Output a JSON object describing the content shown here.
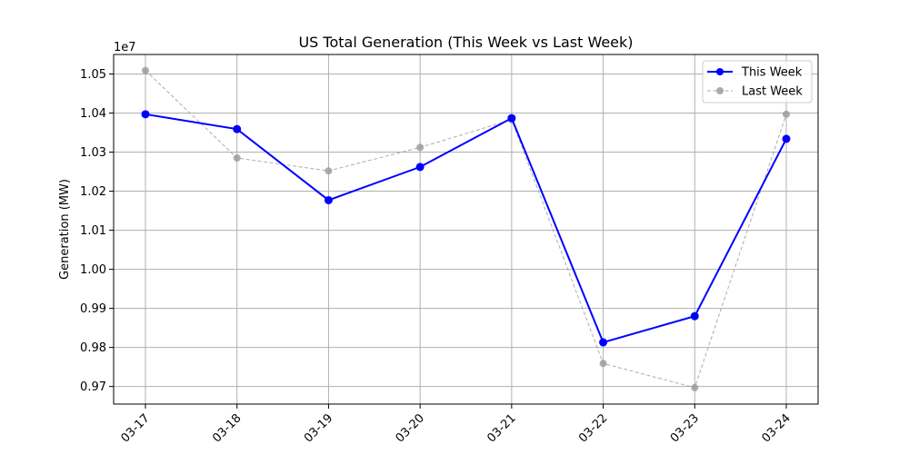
{
  "chart_data": {
    "type": "line",
    "title": "US Total Generation (This Week vs Last Week)",
    "xlabel": "",
    "ylabel": "Generation (MW)",
    "y_offset_label": "1e7",
    "categories": [
      "03-17",
      "03-18",
      "03-19",
      "03-20",
      "03-21",
      "03-22",
      "03-23",
      "03-24"
    ],
    "yticks": [
      "0.97",
      "0.98",
      "0.99",
      "1.00",
      "1.01",
      "1.02",
      "1.03",
      "1.04",
      "1.05"
    ],
    "ylim": [
      9655000,
      10550000
    ],
    "grid": true,
    "legend_position": "top-right",
    "series": [
      {
        "name": "This Week",
        "color": "#0000ff",
        "style": "solid",
        "values": [
          10397000,
          10359000,
          10177000,
          10262000,
          10387000,
          9813000,
          9880000,
          10334000
        ]
      },
      {
        "name": "Last Week",
        "color": "#999999",
        "style": "dashed",
        "values": [
          10509000,
          10285000,
          10252000,
          10312000,
          10383000,
          9759000,
          9697000,
          10397000
        ]
      }
    ]
  }
}
